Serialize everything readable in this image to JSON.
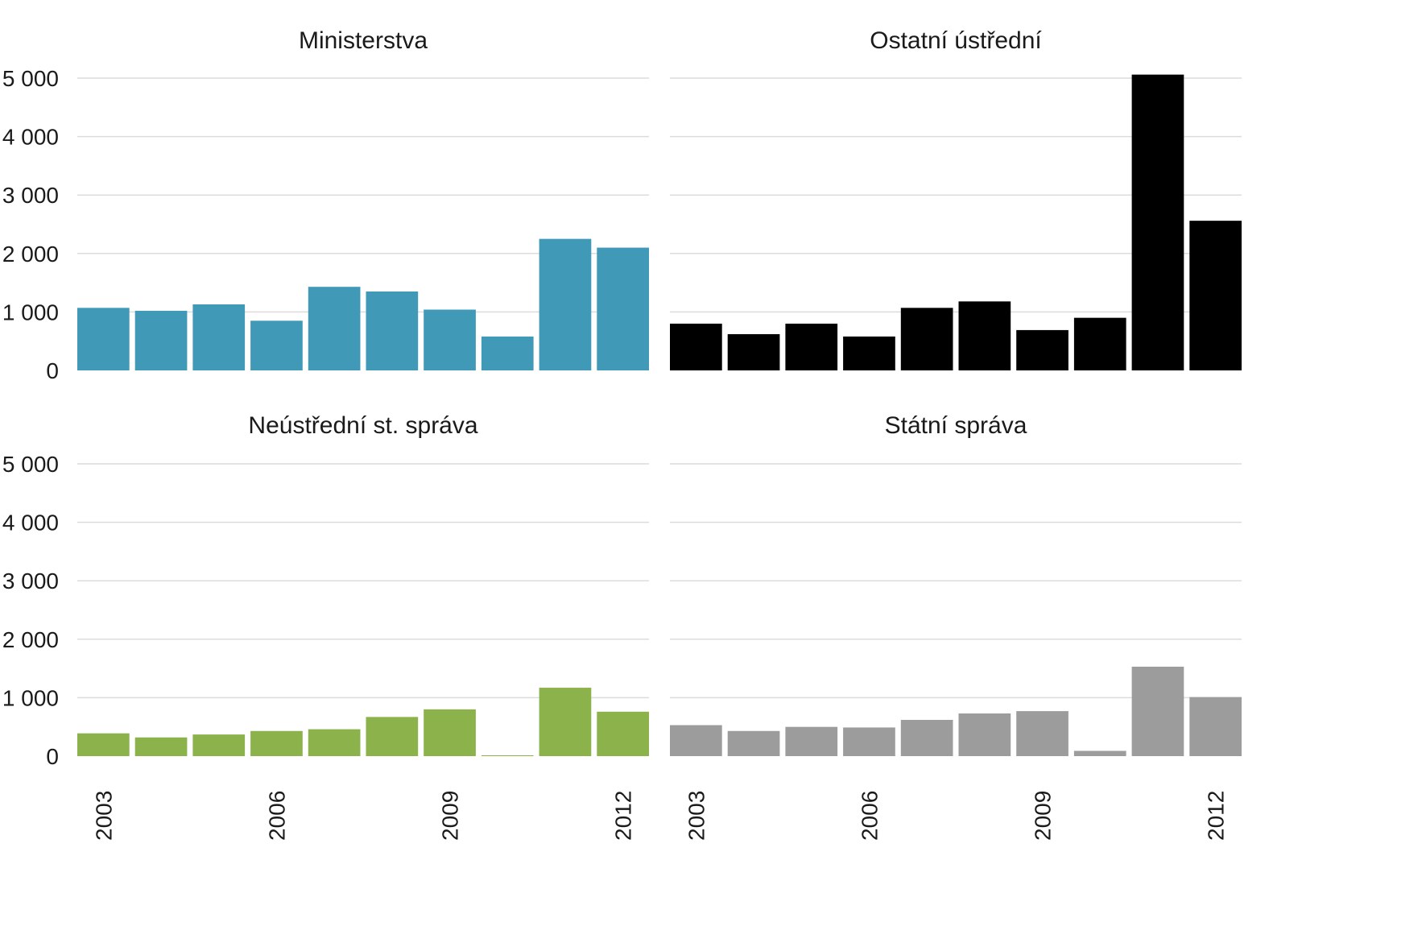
{
  "chart_data": [
    {
      "type": "bar",
      "title": "Ministerstva",
      "color": "#4199b8",
      "categories": [
        "2003",
        "2004",
        "2005",
        "2006",
        "2007",
        "2008",
        "2009",
        "2010",
        "2011",
        "2012"
      ],
      "values": [
        1070,
        1020,
        1130,
        850,
        1430,
        1350,
        1040,
        580,
        2250,
        2100
      ],
      "ylim": [
        0,
        5000
      ],
      "yticks": [
        "0",
        "1 000",
        "2 000",
        "3 000",
        "4 000",
        "5 000"
      ],
      "xticks": [
        "2003",
        "2006",
        "2009",
        "2012"
      ],
      "grid": true
    },
    {
      "type": "bar",
      "title": "Ostatní ústřední",
      "color": "#000000",
      "categories": [
        "2003",
        "2004",
        "2005",
        "2006",
        "2007",
        "2008",
        "2009",
        "2010",
        "2011",
        "2012"
      ],
      "values": [
        800,
        620,
        800,
        580,
        1070,
        1180,
        690,
        900,
        5060,
        2560
      ],
      "ylim": [
        0,
        5000
      ],
      "yticks": [
        "0",
        "1 000",
        "2 000",
        "3 000",
        "4 000",
        "5 000"
      ],
      "xticks": [
        "2003",
        "2006",
        "2009",
        "2012"
      ],
      "grid": true
    },
    {
      "type": "bar",
      "title": "Neústřední st. správa",
      "color": "#8bb24b",
      "categories": [
        "2003",
        "2004",
        "2005",
        "2006",
        "2007",
        "2008",
        "2009",
        "2010",
        "2011",
        "2012"
      ],
      "values": [
        390,
        320,
        370,
        430,
        460,
        670,
        800,
        10,
        1170,
        760
      ],
      "ylim": [
        0,
        5000
      ],
      "yticks": [
        "0",
        "1 000",
        "2 000",
        "3 000",
        "4 000",
        "5 000"
      ],
      "xticks": [
        "2003",
        "2006",
        "2009",
        "2012"
      ],
      "grid": true
    },
    {
      "type": "bar",
      "title": "Státní správa",
      "color": "#9c9c9c",
      "categories": [
        "2003",
        "2004",
        "2005",
        "2006",
        "2007",
        "2008",
        "2009",
        "2010",
        "2011",
        "2012"
      ],
      "values": [
        530,
        430,
        500,
        490,
        620,
        730,
        770,
        90,
        1530,
        1010
      ],
      "ylim": [
        0,
        5000
      ],
      "yticks": [
        "0",
        "1 000",
        "2 000",
        "3 000",
        "4 000",
        "5 000"
      ],
      "xticks": [
        "2003",
        "2006",
        "2009",
        "2012"
      ],
      "grid": true
    }
  ]
}
